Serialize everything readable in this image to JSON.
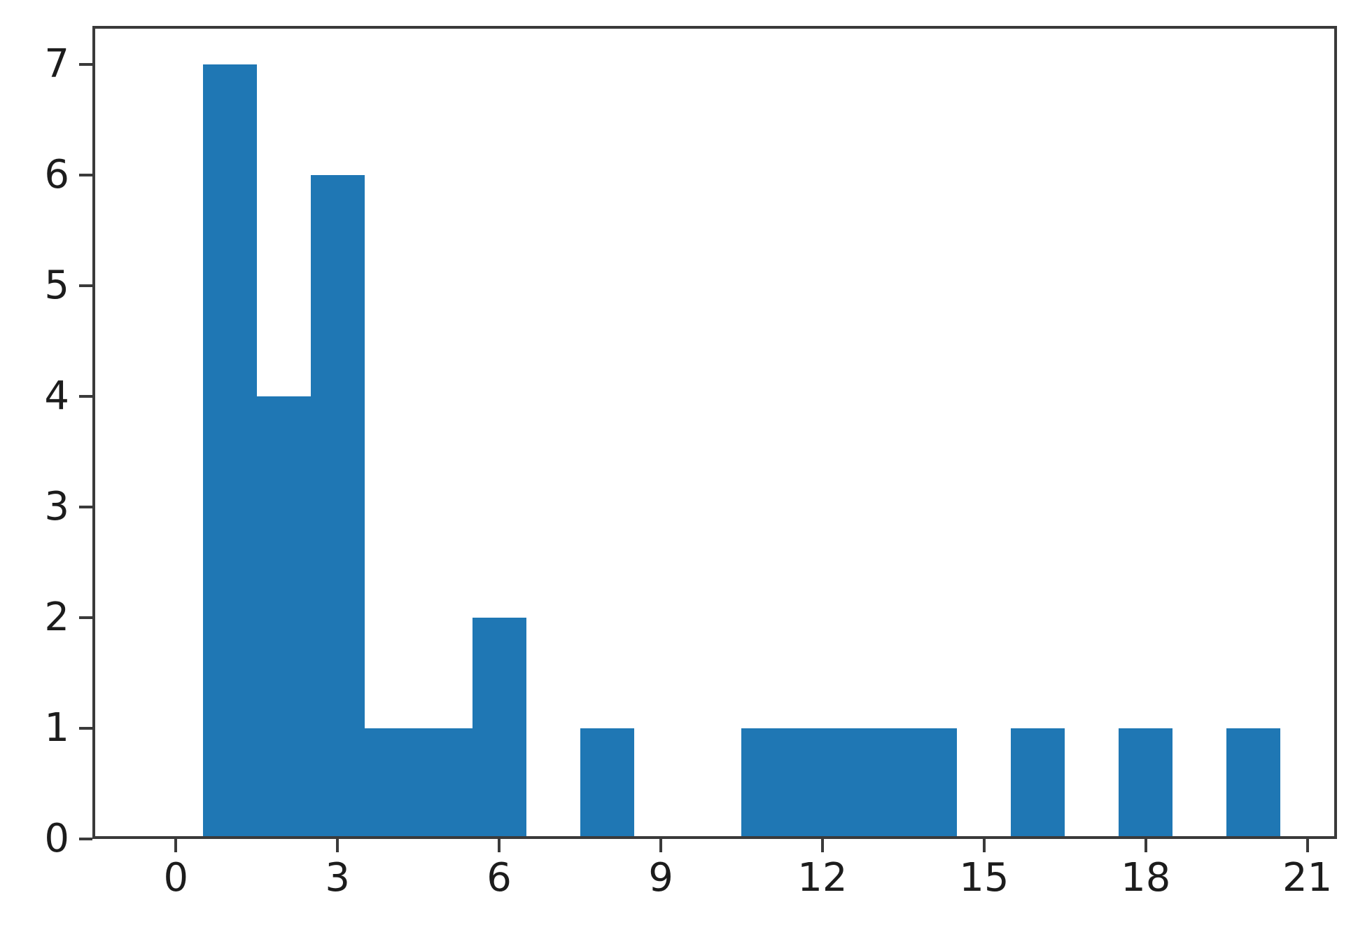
{
  "chart_data": {
    "type": "bar",
    "subtype": "histogram",
    "categories": [
      0,
      1,
      2,
      3,
      4,
      5,
      6,
      7,
      8,
      9,
      10,
      11,
      12,
      13,
      14,
      15,
      16,
      17,
      18,
      19,
      20
    ],
    "values": [
      0,
      7,
      4,
      6,
      1,
      1,
      2,
      0,
      1,
      0,
      0,
      1,
      1,
      1,
      1,
      0,
      1,
      0,
      1,
      0,
      1
    ],
    "bin_width": 1,
    "x_tick_values": [
      0,
      3,
      6,
      9,
      12,
      15,
      18,
      21
    ],
    "x_tick_labels": [
      "0",
      "3",
      "6",
      "9",
      "12",
      "15",
      "18",
      "21"
    ],
    "y_tick_values": [
      0,
      1,
      2,
      3,
      4,
      5,
      6,
      7
    ],
    "y_tick_labels": [
      "0",
      "1",
      "2",
      "3",
      "4",
      "5",
      "6",
      "7"
    ],
    "xlim": [
      -1.55,
      21.55
    ],
    "ylim": [
      0,
      7.35
    ],
    "grid": false,
    "legend_position": "none",
    "colors": {
      "bar": "#1f77b4",
      "spine": "#3a3a3a",
      "tick_mark": "#3a3a3a",
      "tick_text": "#1c1c1c",
      "background": "#ffffff"
    }
  }
}
